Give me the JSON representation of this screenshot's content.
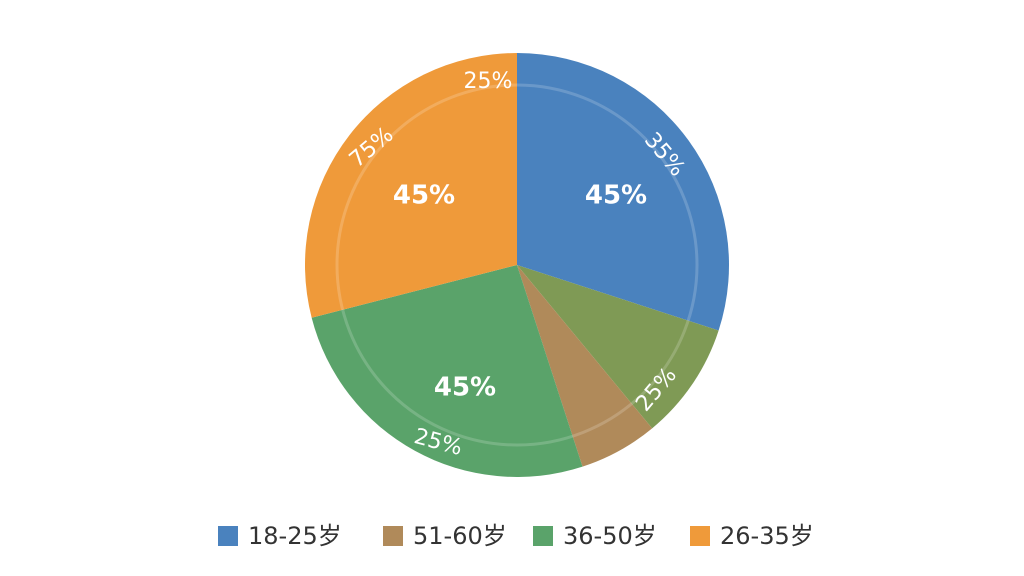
{
  "chart_data": {
    "type": "pie",
    "categories": [
      "18-25岁",
      null,
      "51-60岁",
      "36-50岁",
      "26-35岁"
    ],
    "values": [
      30,
      9,
      6,
      26,
      29
    ],
    "colors": [
      "#4a82be",
      "#7f9a55",
      "#b08a5a",
      "#5aa36a",
      "#ef9a3a"
    ],
    "annotations": [
      "45%",
      "45%",
      "45%",
      "35%",
      "25%",
      "75%",
      "25%",
      "25%"
    ]
  }
}
